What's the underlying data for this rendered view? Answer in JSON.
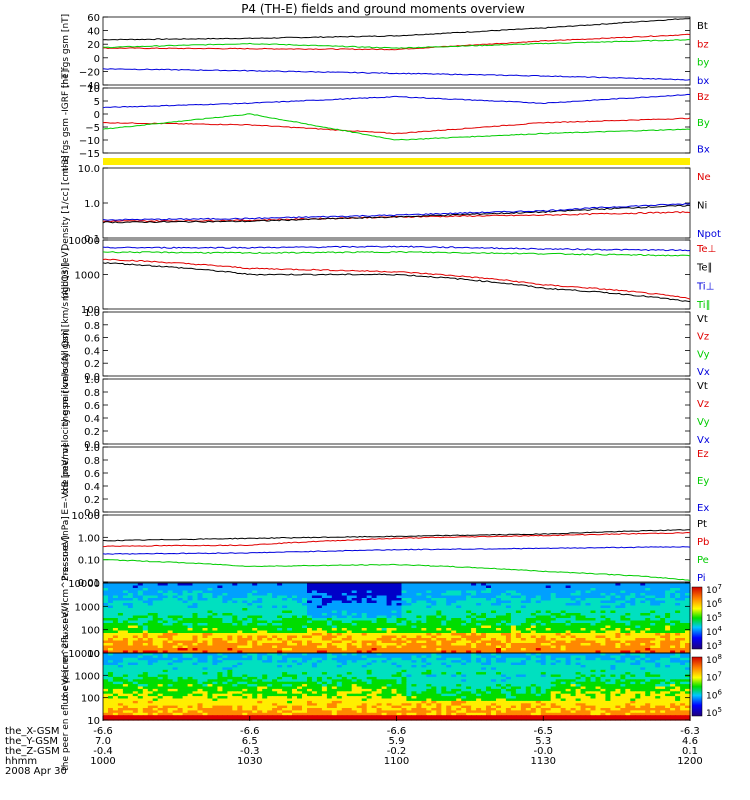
{
  "title": "P4 (TH-E) fields and ground moments overview",
  "colors": {
    "black": "#000000",
    "red": "#e00000",
    "green": "#00cc00",
    "blue": "#0000dd",
    "yellow": "#ffee00"
  },
  "footer": {
    "labels": [
      "the_X-GSM",
      "the_Y-GSM",
      "the_Z-GSM",
      "hhmm",
      "2008 Apr 30"
    ],
    "rows": [
      [
        "-6.6",
        "-6.6",
        "-6.6",
        "-6.5",
        "-6.3"
      ],
      [
        "7.0",
        "6.5",
        "5.9",
        "5.3",
        "4.6"
      ],
      [
        "-0.4",
        "-0.3",
        "-0.2",
        "-0.0",
        "0.1"
      ],
      [
        "1000",
        "1030",
        "1100",
        "1130",
        "1200"
      ]
    ]
  },
  "chart_data": [
    {
      "type": "line",
      "ylabel": "the fgs gsm [nT]",
      "ylim": [
        -40,
        65
      ],
      "ticks": [
        "60",
        "40",
        "20",
        "0",
        "−20",
        "−40"
      ],
      "x": [
        1000,
        1030,
        1100,
        1130,
        1200
      ],
      "series": [
        {
          "name": "Bt",
          "color": "black",
          "values": [
            30,
            32,
            36,
            48,
            63
          ]
        },
        {
          "name": "bz",
          "color": "red",
          "values": [
            17,
            16,
            15,
            28,
            38
          ]
        },
        {
          "name": "by",
          "color": "green",
          "values": [
            18,
            24,
            17,
            24,
            30
          ]
        },
        {
          "name": "bx",
          "color": "blue",
          "values": [
            -15,
            -18,
            -22,
            -26,
            -32
          ]
        }
      ]
    },
    {
      "type": "line",
      "ylabel": "the fgs gsm -IGRF [nT]",
      "ylim": [
        -18,
        12
      ],
      "ticks": [
        "10",
        "5",
        "0",
        "−5",
        "−10",
        "−15"
      ],
      "x": [
        1000,
        1030,
        1100,
        1130,
        1200
      ],
      "series": [
        {
          "name": "Bz",
          "color": "red",
          "values": [
            -4,
            -5,
            -9,
            -4,
            -2
          ]
        },
        {
          "name": "By",
          "color": "green",
          "values": [
            -7,
            0,
            -12,
            -9,
            -7
          ]
        },
        {
          "name": "Bx",
          "color": "blue",
          "values": [
            3,
            5,
            8,
            5,
            9
          ]
        }
      ]
    },
    {
      "type": "line",
      "ylabel": "Density [1/cc] [cm-3]",
      "scale": "log",
      "ylim": [
        0.1,
        10
      ],
      "ticks": [
        "10.0",
        "1.0",
        "0.1"
      ],
      "x": [
        1000,
        1030,
        1100,
        1130,
        1200
      ],
      "series": [
        {
          "name": "Ne",
          "color": "red",
          "values": [
            0.3,
            0.32,
            0.4,
            0.45,
            0.55
          ]
        },
        {
          "name": "Ni",
          "color": "black",
          "values": [
            0.28,
            0.3,
            0.4,
            0.55,
            0.85
          ]
        },
        {
          "name": "Npot",
          "color": "blue",
          "values": [
            0.33,
            0.36,
            0.45,
            0.6,
            0.95
          ]
        }
      ]
    },
    {
      "type": "line",
      "ylabel": "mgd13 [eV]",
      "scale": "log",
      "ylim": [
        100,
        10000
      ],
      "ticks": [
        "10000",
        "1000",
        "100"
      ],
      "x": [
        1000,
        1030,
        1100,
        1130,
        1200
      ],
      "series": [
        {
          "name": "Te⊥",
          "color": "red",
          "values": [
            2800,
            1500,
            1200,
            500,
            200
          ]
        },
        {
          "name": "Te∥",
          "color": "black",
          "values": [
            2200,
            1000,
            1000,
            400,
            160
          ]
        },
        {
          "name": "Ti⊥",
          "color": "blue",
          "values": [
            6000,
            6000,
            6500,
            5500,
            5000
          ]
        },
        {
          "name": "Ti∥",
          "color": "green",
          "values": [
            4500,
            4200,
            4500,
            4000,
            3500
          ]
        }
      ]
    },
    {
      "type": "line",
      "ylabel": "the peir velocity gsm [km/s (All Qs)]",
      "ylim": [
        0,
        1
      ],
      "ticks": [
        "1.0",
        "0.8",
        "0.6",
        "0.4",
        "0.2",
        "0.0"
      ],
      "legend": [
        {
          "name": "Vt",
          "color": "black"
        },
        {
          "name": "Vz",
          "color": "red"
        },
        {
          "name": "Vy",
          "color": "green"
        },
        {
          "name": "Vx",
          "color": "blue"
        }
      ]
    },
    {
      "type": "line",
      "ylabel": "the peer velocity gsm [km/s (All Qs)]",
      "ylim": [
        0,
        1
      ],
      "ticks": [
        "1.0",
        "0.8",
        "0.6",
        "0.4",
        "0.2",
        "0.0"
      ],
      "legend": [
        {
          "name": "Vt",
          "color": "black"
        },
        {
          "name": "Vz",
          "color": "red"
        },
        {
          "name": "Vy",
          "color": "green"
        },
        {
          "name": "Vx",
          "color": "blue"
        }
      ]
    },
    {
      "type": "line",
      "ylabel": "E=-VxB [mV/m]",
      "ylim": [
        0,
        1
      ],
      "ticks": [
        "1.0",
        "0.8",
        "0.6",
        "0.4",
        "0.2",
        "0.0"
      ],
      "legend": [
        {
          "name": "Ez",
          "color": "red"
        },
        {
          "name": "Ey",
          "color": "green"
        },
        {
          "name": "Ex",
          "color": "blue"
        }
      ]
    },
    {
      "type": "line",
      "ylabel": "Pressure [nPa]",
      "scale": "log",
      "ylim": [
        0.01,
        10
      ],
      "ticks": [
        "10.00",
        "1.00",
        "0.10",
        "0.01"
      ],
      "x": [
        1000,
        1030,
        1100,
        1130,
        1200
      ],
      "series": [
        {
          "name": "Pt",
          "color": "black",
          "values": [
            0.7,
            0.9,
            1.1,
            1.4,
            2.2
          ]
        },
        {
          "name": "Pb",
          "color": "red",
          "values": [
            0.4,
            0.45,
            0.9,
            1.2,
            1.6
          ]
        },
        {
          "name": "Pe",
          "color": "green",
          "values": [
            0.1,
            0.05,
            0.06,
            0.03,
            0.012
          ]
        },
        {
          "name": "Pi",
          "color": "blue",
          "values": [
            0.18,
            0.2,
            0.28,
            0.32,
            0.38
          ]
        }
      ]
    },
    {
      "type": "heatmap",
      "ylabel": "the peir en eflux eV/ (cm^2-s- sr-eV)",
      "scale": "log",
      "ylim": [
        10,
        20000
      ],
      "ticks": [
        "10000",
        "1000",
        "100",
        "10"
      ],
      "colorbar": [
        "10^7",
        "10^6",
        "10^5",
        "10^4",
        "10^3"
      ]
    },
    {
      "type": "heatmap",
      "ylabel": "the peer en eflux eV/ (cm^2-s- sr-eV)",
      "scale": "log",
      "ylim": [
        10,
        20000
      ],
      "ticks": [
        "10000",
        "1000",
        "100",
        "10"
      ],
      "colorbar": [
        "10^8",
        "10^7",
        "10^6",
        "10^5"
      ]
    }
  ]
}
